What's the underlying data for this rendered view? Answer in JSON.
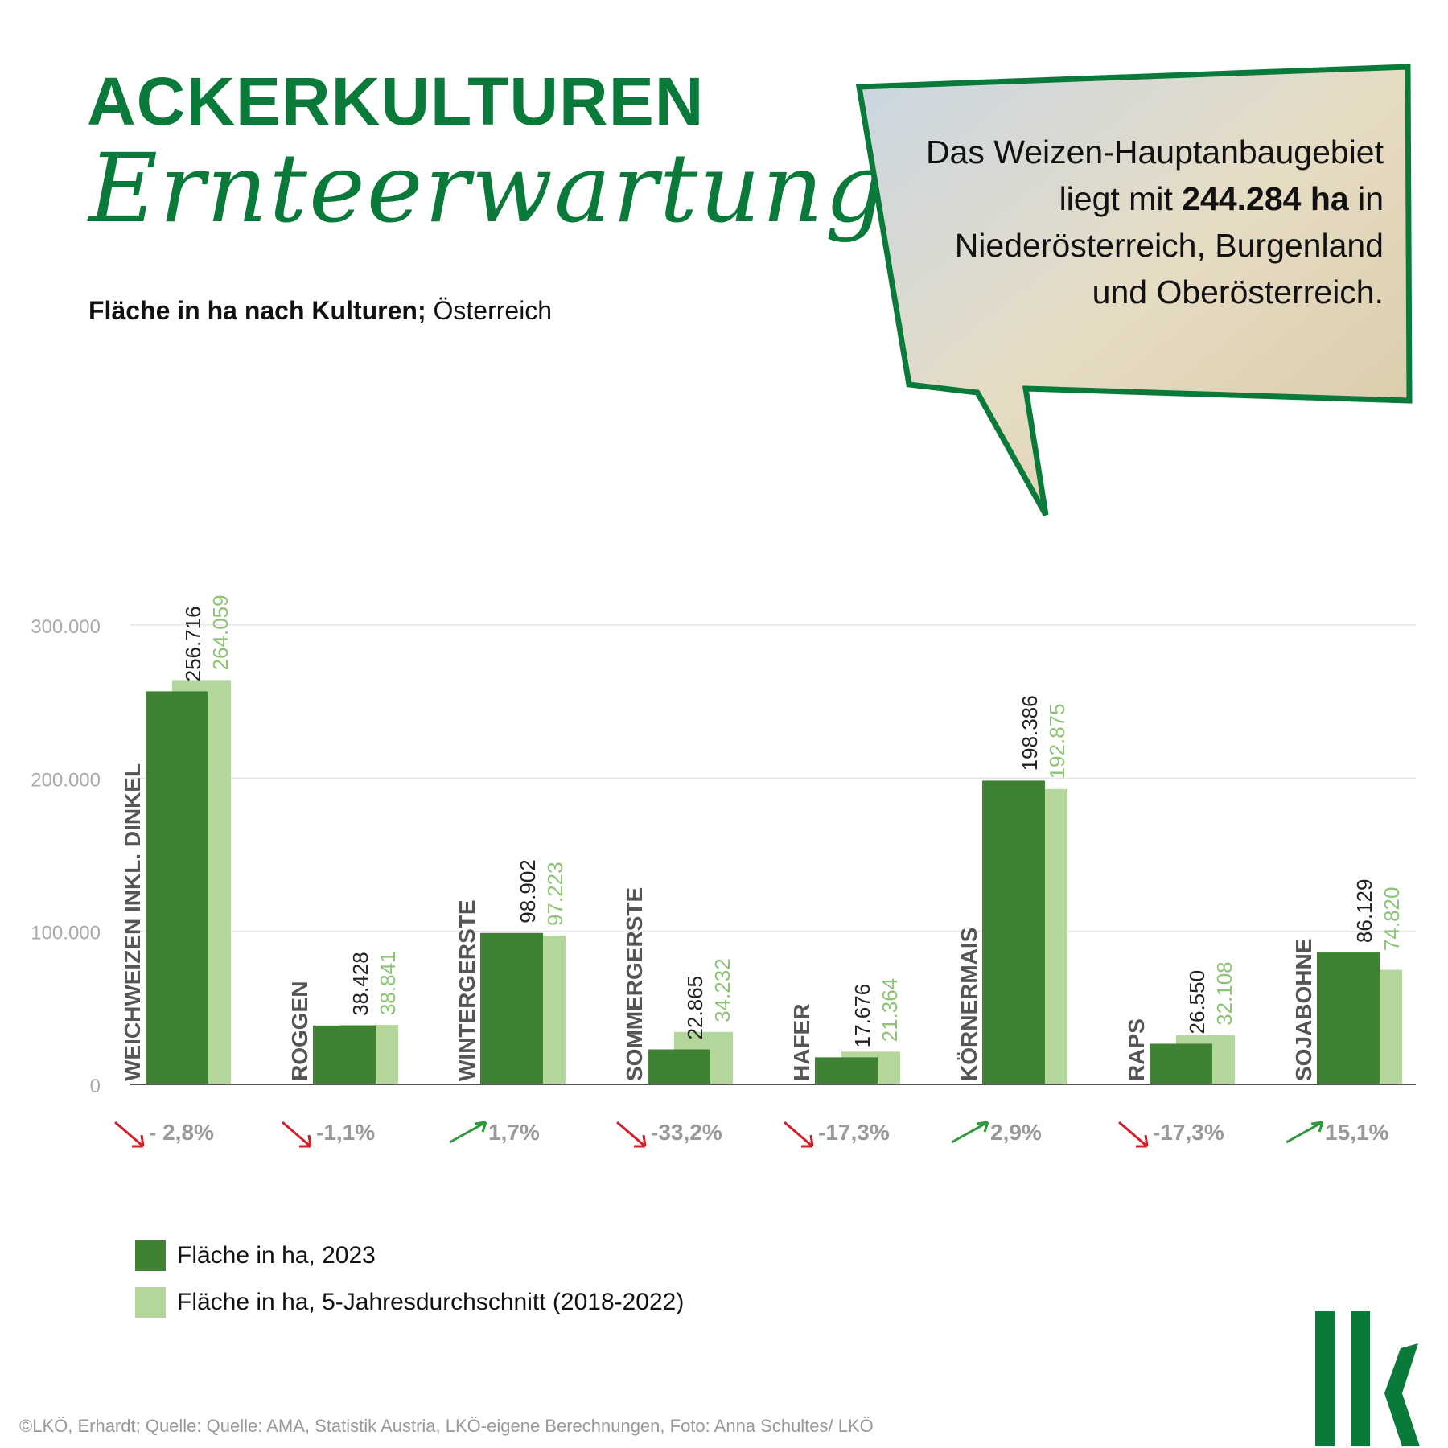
{
  "header": {
    "title": "ACKERKULTUREN",
    "script_title": "Ernteerwartungen",
    "subtitle_bold": "Fläche in ha nach Kulturen;",
    "subtitle_rest": "Österreich"
  },
  "bubble": {
    "line1": "Das Weizen-Hauptanbaugebiet",
    "line2_pre": "liegt mit ",
    "line2_bold": "244.284 ha",
    "line2_post": " in",
    "line3": "Niederösterreich, Burgenland",
    "line4": "und Oberösterreich."
  },
  "colors": {
    "dark": "#3f8233",
    "light": "#b5d69b",
    "brand": "#0a7a3b",
    "up": "#2e9a3a",
    "down": "#d0202a"
  },
  "chart_data": {
    "type": "bar",
    "categories": [
      "WEICHWEIZEN INKL. DINKEL",
      "ROGGEN",
      "WINTERGERSTE",
      "SOMMERGERSTE",
      "HAFER",
      "KÖRNERMAIS",
      "RAPS",
      "SOJABOHNE"
    ],
    "series": [
      {
        "name": "Fläche in ha, 2023",
        "values": [
          256716,
          38428,
          98902,
          22865,
          17676,
          198386,
          26550,
          86129
        ],
        "labels": [
          "256.716",
          "38.428",
          "98.902",
          "22.865",
          "17.676",
          "198.386",
          "26.550",
          "86.129"
        ]
      },
      {
        "name": "Fläche in ha, 5-Jahresdurchschnitt (2018-2022)",
        "values": [
          264059,
          38841,
          97223,
          34232,
          21364,
          192875,
          32108,
          74820
        ],
        "labels": [
          "264.059",
          "38.841",
          "97.223",
          "34.232",
          "21.364",
          "192.875",
          "32.108",
          "74.820"
        ]
      }
    ],
    "changes": [
      "- 2,8%",
      "-1,1%",
      "1,7%",
      "-33,2%",
      "-17,3%",
      "2,9%",
      "-17,3%",
      "15,1%"
    ],
    "change_dir": [
      "down",
      "down",
      "up",
      "down",
      "down",
      "up",
      "down",
      "up"
    ],
    "yticks": [
      0,
      100000,
      200000,
      300000
    ],
    "ytick_labels": [
      "0",
      "100.000",
      "200.000",
      "300.000"
    ],
    "ylim": [
      0,
      300000
    ],
    "grid": true,
    "legend": "bottom-left"
  },
  "legend": {
    "item1": "Fläche in ha, 2023",
    "item2": "Fläche in ha, 5-Jahresdurchschnitt (2018-2022)"
  },
  "footer": "©LKÖ, Erhardt; Quelle: Quelle: AMA, Statistik Austria, LKÖ-eigene Berechnungen, Foto: Anna Schultes/ LKÖ",
  "logo": "lk"
}
